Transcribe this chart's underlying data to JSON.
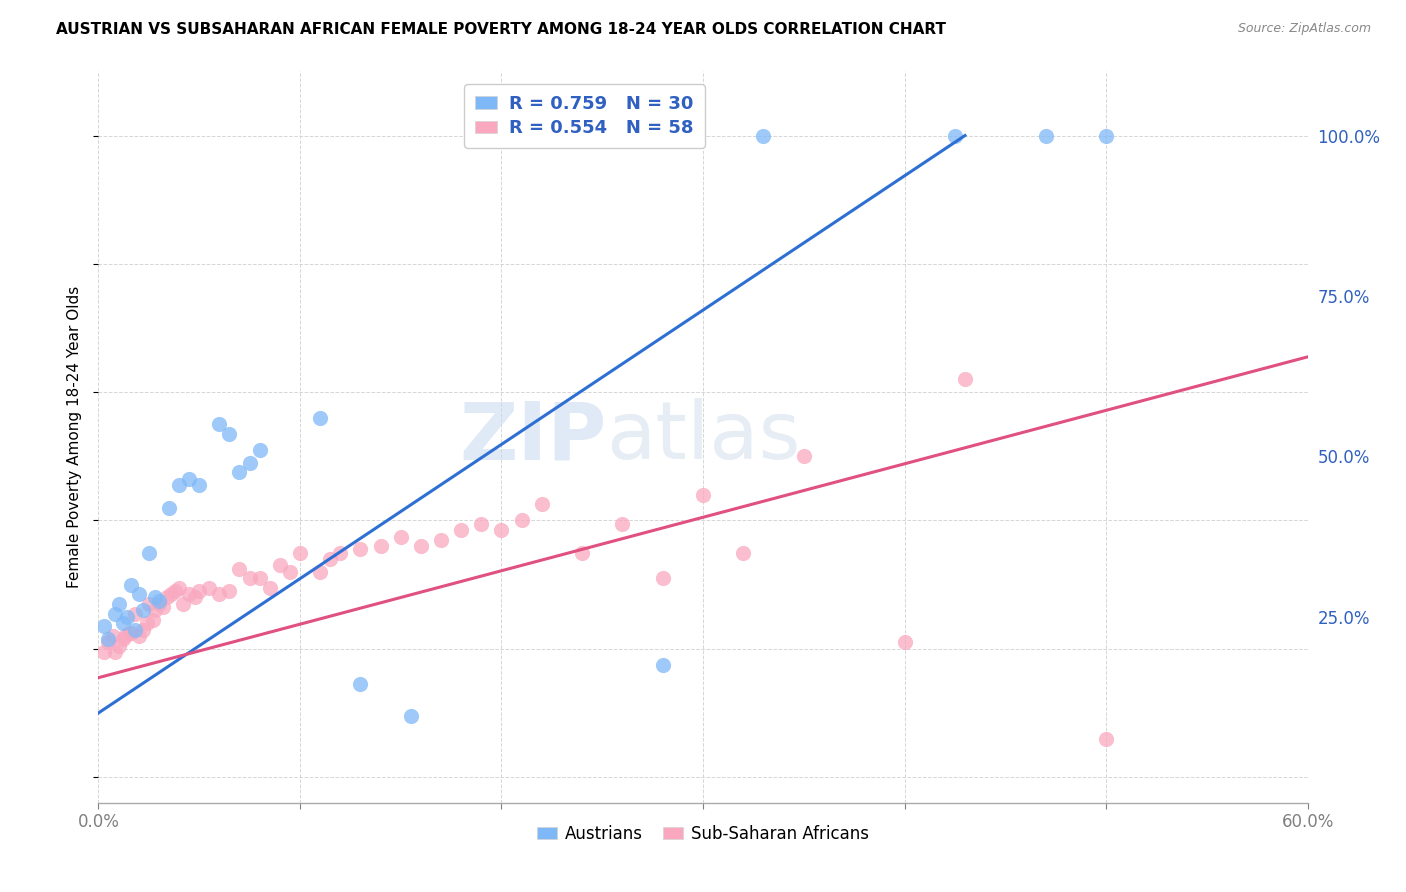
{
  "title": "AUSTRIAN VS SUBSAHARAN AFRICAN FEMALE POVERTY AMONG 18-24 YEAR OLDS CORRELATION CHART",
  "source": "Source: ZipAtlas.com",
  "ylabel": "Female Poverty Among 18-24 Year Olds",
  "xlim": [
    0.0,
    0.6
  ],
  "ylim": [
    -0.04,
    1.1
  ],
  "blue_R": 0.759,
  "blue_N": 30,
  "pink_R": 0.554,
  "pink_N": 58,
  "blue_color": "#7EB8F7",
  "pink_color": "#F9A8C0",
  "blue_line_color": "#2E6FD4",
  "pink_line_color": "#E05080",
  "grid_color": "#CCCCCC",
  "background_color": "#FFFFFF",
  "legend_label_blue": "Austrians",
  "legend_label_pink": "Sub-Saharan Africans",
  "blue_points_x": [
    0.003,
    0.005,
    0.008,
    0.01,
    0.012,
    0.014,
    0.016,
    0.018,
    0.02,
    0.022,
    0.025,
    0.028,
    0.03,
    0.035,
    0.04,
    0.045,
    0.05,
    0.06,
    0.065,
    0.07,
    0.075,
    0.08,
    0.11,
    0.13,
    0.155,
    0.28,
    0.33,
    0.425,
    0.47,
    0.5
  ],
  "blue_points_y": [
    0.235,
    0.215,
    0.255,
    0.27,
    0.24,
    0.25,
    0.3,
    0.23,
    0.285,
    0.26,
    0.35,
    0.28,
    0.275,
    0.42,
    0.455,
    0.465,
    0.455,
    0.55,
    0.535,
    0.475,
    0.49,
    0.51,
    0.56,
    0.145,
    0.095,
    0.175,
    1.0,
    1.0,
    1.0,
    1.0
  ],
  "pink_points_x": [
    0.003,
    0.005,
    0.007,
    0.008,
    0.01,
    0.012,
    0.013,
    0.015,
    0.016,
    0.018,
    0.02,
    0.022,
    0.024,
    0.025,
    0.027,
    0.028,
    0.03,
    0.032,
    0.034,
    0.036,
    0.038,
    0.04,
    0.042,
    0.045,
    0.048,
    0.05,
    0.055,
    0.06,
    0.065,
    0.07,
    0.075,
    0.08,
    0.085,
    0.09,
    0.095,
    0.1,
    0.11,
    0.115,
    0.12,
    0.13,
    0.14,
    0.15,
    0.16,
    0.17,
    0.18,
    0.19,
    0.2,
    0.21,
    0.22,
    0.24,
    0.26,
    0.28,
    0.3,
    0.32,
    0.35,
    0.4,
    0.43,
    0.5
  ],
  "pink_points_y": [
    0.195,
    0.21,
    0.22,
    0.195,
    0.205,
    0.215,
    0.22,
    0.225,
    0.225,
    0.255,
    0.22,
    0.23,
    0.24,
    0.27,
    0.245,
    0.26,
    0.27,
    0.265,
    0.28,
    0.285,
    0.29,
    0.295,
    0.27,
    0.285,
    0.28,
    0.29,
    0.295,
    0.285,
    0.29,
    0.325,
    0.31,
    0.31,
    0.295,
    0.33,
    0.32,
    0.35,
    0.32,
    0.34,
    0.35,
    0.355,
    0.36,
    0.375,
    0.36,
    0.37,
    0.385,
    0.395,
    0.385,
    0.4,
    0.425,
    0.35,
    0.395,
    0.31,
    0.44,
    0.35,
    0.5,
    0.21,
    0.62,
    0.06
  ],
  "blue_line_x0": 0.0,
  "blue_line_y0": 0.1,
  "blue_line_x1": 0.43,
  "blue_line_y1": 1.0,
  "pink_line_x0": 0.0,
  "pink_line_y0": 0.155,
  "pink_line_x1": 0.6,
  "pink_line_y1": 0.655
}
